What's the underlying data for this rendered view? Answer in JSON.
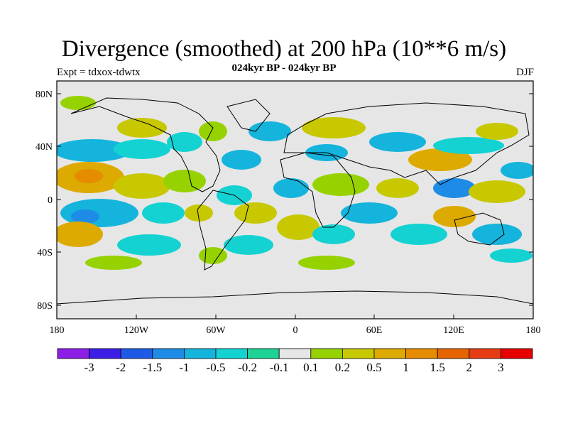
{
  "header": {
    "title": "Divergence (smoothed) at 200 hPa (10**6 m/s)",
    "subtitle": "024kyr BP - 024kyr BP",
    "left_label": "Expt = tdxox-tdwtx",
    "right_label": "DJF"
  },
  "map": {
    "lat_labels": [
      "80N",
      "40N",
      "0",
      "40S",
      "80S"
    ],
    "lon_labels": [
      "180",
      "120W",
      "60W",
      "0",
      "60E",
      "120E",
      "180"
    ],
    "background_color": "#e6e6e6"
  },
  "colorbar": {
    "colors": [
      "#8c1ee6",
      "#3c1ee6",
      "#1e5ae6",
      "#1e8ce6",
      "#14b4dc",
      "#14d2d2",
      "#1ed296",
      "#e6e6e6",
      "#96d200",
      "#c8c800",
      "#dcaa00",
      "#e68c00",
      "#e66400",
      "#e63c14",
      "#e60000"
    ],
    "labels": [
      "-3",
      "-2",
      "-1.5",
      "-1",
      "-0.5",
      "-0.2",
      "-0.1",
      "0.1",
      "0.2",
      "0.5",
      "1",
      "1.5",
      "2",
      "3"
    ]
  }
}
